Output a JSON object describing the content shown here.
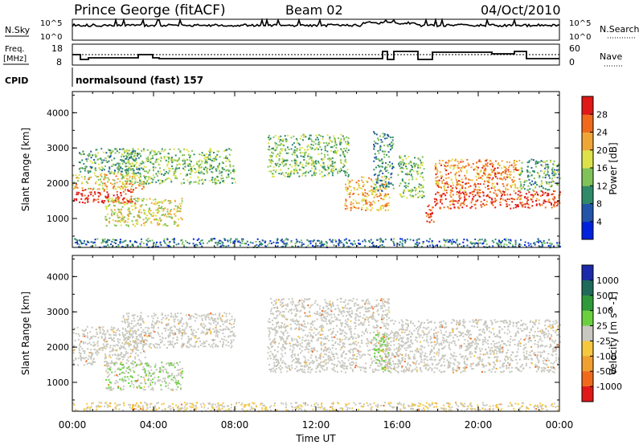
{
  "header": {
    "station": "Prince George (fitACF)",
    "beam": "Beam 02",
    "date": "04/Oct/2010"
  },
  "status_panels": {
    "nsky_label": "N.Sky",
    "nsky_ticks": [
      "10^5",
      "10^0"
    ],
    "nsearch_label": "N.Search",
    "nsearch_ticks": [
      "10^5",
      "10^0"
    ],
    "freq_label_line1": "Freq.",
    "freq_label_line2": "[MHz]",
    "freq_ticks": [
      "18",
      "8"
    ],
    "nave_label": "Nave",
    "nave_ticks": [
      "60",
      "0"
    ],
    "cpid_label": "CPID",
    "cpid_text": "normalsound (fast) 157"
  },
  "chart_data": [
    {
      "type": "heatmap",
      "name": "power",
      "ylabel": "Slant Range [km]",
      "xlabel": "",
      "yticks": [
        "1000",
        "2000",
        "3000",
        "4000"
      ],
      "ylim": [
        180,
        4600
      ],
      "xlim": [
        0,
        24
      ],
      "colorbar_label": "Power [dB]",
      "colorbar_ticks": [
        "4",
        "8",
        "12",
        "16",
        "20",
        "24",
        "28"
      ],
      "colorbar_range": [
        0,
        32
      ],
      "colors": [
        "#0022dd",
        "#2255aa",
        "#2f8a6a",
        "#7fc25a",
        "#dde24a",
        "#f0a636",
        "#f06a1e",
        "#e01818"
      ],
      "regions": [
        {
          "t": [
            0.0,
            3.1
          ],
          "r": [
            1450,
            1850
          ],
          "level": 30
        },
        {
          "t": [
            0.0,
            3.6
          ],
          "r": [
            1850,
            2300
          ],
          "level": 20
        },
        {
          "t": [
            0.3,
            3.3
          ],
          "r": [
            2300,
            3000
          ],
          "level": 12
        },
        {
          "t": [
            1.6,
            5.4
          ],
          "r": [
            800,
            1600
          ],
          "level": 18
        },
        {
          "t": [
            2.4,
            8.0
          ],
          "r": [
            2000,
            3000
          ],
          "level": 14
        },
        {
          "t": [
            9.6,
            13.6
          ],
          "r": [
            2200,
            3400
          ],
          "level": 14
        },
        {
          "t": [
            13.4,
            15.6
          ],
          "r": [
            1250,
            2200
          ],
          "level": 22
        },
        {
          "t": [
            14.8,
            15.8
          ],
          "r": [
            1800,
            3500
          ],
          "level": 10
        },
        {
          "t": [
            16.0,
            17.3
          ],
          "r": [
            1600,
            2800
          ],
          "level": 14
        },
        {
          "t": [
            17.2,
            17.8
          ],
          "r": [
            900,
            1400
          ],
          "level": 28
        },
        {
          "t": [
            17.8,
            22.0
          ],
          "r": [
            1800,
            2700
          ],
          "level": 24
        },
        {
          "t": [
            17.8,
            24.0
          ],
          "r": [
            1300,
            1800
          ],
          "level": 28
        },
        {
          "t": [
            22.0,
            24.0
          ],
          "r": [
            1800,
            2700
          ],
          "level": 12
        },
        {
          "t": [
            0.0,
            24.0
          ],
          "r": [
            200,
            450
          ],
          "level": 8
        }
      ]
    },
    {
      "type": "heatmap",
      "name": "velocity",
      "ylabel": "Slant Range [km]",
      "xlabel": "Time UT",
      "yticks": [
        "1000",
        "2000",
        "3000",
        "4000"
      ],
      "ylim": [
        180,
        4600
      ],
      "xticks": [
        "00:00",
        "04:00",
        "08:00",
        "12:00",
        "16:00",
        "20:00",
        "00:00"
      ],
      "xlim": [
        0,
        24
      ],
      "colorbar_label": "Velocity [m s^-1]",
      "colorbar_ticks": [
        "1000",
        "500",
        "100",
        "25",
        "-25",
        "-100",
        "-500",
        "-1000"
      ],
      "colors": [
        "#1a2aaa",
        "#1f6a5a",
        "#2f9a3a",
        "#6ad040",
        "#c8c8c0",
        "#f6c840",
        "#f0a030",
        "#f06a1e",
        "#e01818"
      ],
      "regions": [
        {
          "t": [
            0.0,
            3.6
          ],
          "r": [
            1500,
            2600
          ],
          "level": 0
        },
        {
          "t": [
            2.4,
            8.0
          ],
          "r": [
            2000,
            3000
          ],
          "level": 0
        },
        {
          "t": [
            1.6,
            5.4
          ],
          "r": [
            800,
            1600
          ],
          "level": 8
        },
        {
          "t": [
            9.6,
            15.6
          ],
          "r": [
            1300,
            3400
          ],
          "level": 0
        },
        {
          "t": [
            14.8,
            15.6
          ],
          "r": [
            1300,
            2400
          ],
          "level": 15
        },
        {
          "t": [
            15.4,
            24.0
          ],
          "r": [
            1300,
            2800
          ],
          "level": 0
        },
        {
          "t": [
            0.0,
            24.0
          ],
          "r": [
            200,
            450
          ],
          "level": -8
        }
      ]
    }
  ]
}
